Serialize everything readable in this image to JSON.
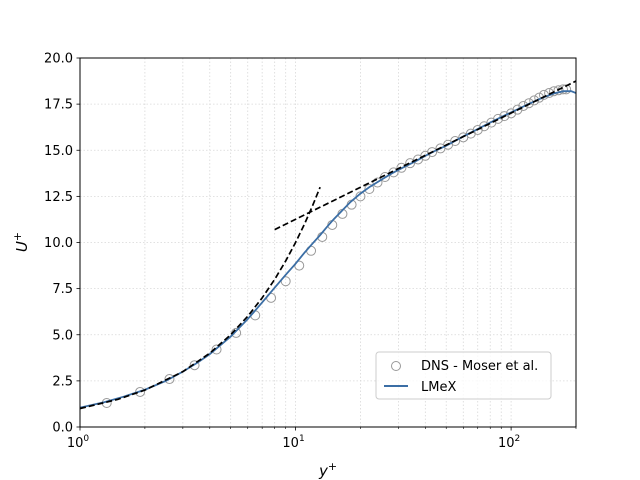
{
  "chart_data": {
    "type": "line",
    "title": "",
    "xlabel": "y",
    "xlabel_sup": "+",
    "ylabel": "U",
    "ylabel_sup": "+",
    "xscale": "log",
    "xlim": [
      1,
      200
    ],
    "ylim": [
      0,
      20
    ],
    "grid": true,
    "legend_position": "lower-right",
    "x_ticks": [
      {
        "value": 1,
        "base": "10",
        "exp": "0"
      },
      {
        "value": 10,
        "base": "10",
        "exp": "1"
      },
      {
        "value": 100,
        "base": "10",
        "exp": "2"
      }
    ],
    "y_ticks": [
      {
        "value": 0,
        "label": "0.0"
      },
      {
        "value": 2.5,
        "label": "2.5"
      },
      {
        "value": 5,
        "label": "5.0"
      },
      {
        "value": 7.5,
        "label": "7.5"
      },
      {
        "value": 10,
        "label": "10.0"
      },
      {
        "value": 12.5,
        "label": "12.5"
      },
      {
        "value": 15,
        "label": "15.0"
      },
      {
        "value": 17.5,
        "label": "17.5"
      },
      {
        "value": 20,
        "label": "20.0"
      }
    ],
    "series": [
      {
        "name": "DNS - Moser et al.",
        "style": "markers",
        "color": "#999999",
        "x": [
          1.33,
          1.9,
          2.6,
          3.4,
          4.3,
          5.3,
          6.5,
          7.7,
          9.0,
          10.4,
          11.8,
          13.3,
          14.8,
          16.5,
          18.2,
          20.0,
          22.0,
          24.0,
          26.0,
          28.5,
          31.0,
          34.0,
          37.0,
          40.0,
          43.0,
          47.0,
          51.0,
          55.0,
          60.0,
          65.0,
          70.0,
          75.0,
          81.0,
          87.0,
          93.0,
          100.0,
          107.0,
          114.0,
          121.0,
          128.0,
          135.0,
          142.0,
          150.0,
          158.0,
          166.0,
          174.0,
          180.0
        ],
        "y": [
          1.3,
          1.9,
          2.6,
          3.35,
          4.2,
          5.1,
          6.05,
          7.0,
          7.9,
          8.75,
          9.55,
          10.3,
          10.95,
          11.55,
          12.05,
          12.5,
          12.9,
          13.25,
          13.55,
          13.8,
          14.05,
          14.3,
          14.5,
          14.7,
          14.9,
          15.1,
          15.3,
          15.5,
          15.7,
          15.9,
          16.1,
          16.3,
          16.5,
          16.7,
          16.85,
          17.0,
          17.2,
          17.4,
          17.55,
          17.7,
          17.85,
          18.0,
          18.1,
          18.2,
          18.25,
          18.3,
          18.3
        ]
      },
      {
        "name": "LMeX",
        "style": "line",
        "color": "#3b6ea5",
        "x": [
          1.0,
          1.3,
          1.6,
          2.0,
          2.5,
          3.0,
          3.5,
          4.0,
          5.0,
          6.0,
          7.0,
          8.0,
          9.0,
          10.0,
          11.0,
          12.0,
          13.0,
          14.0,
          15.0,
          16.5,
          18.0,
          20.0,
          22.0,
          25.0,
          28.0,
          32.0,
          36.0,
          40.0,
          45.0,
          50.0,
          60.0,
          70.0,
          80.0,
          90.0,
          100.0,
          120.0,
          140.0,
          160.0,
          175.0,
          190.0,
          200.0
        ],
        "y": [
          1.05,
          1.35,
          1.65,
          2.02,
          2.5,
          3.0,
          3.48,
          3.95,
          4.9,
          5.85,
          6.75,
          7.55,
          8.25,
          8.85,
          9.45,
          9.95,
          10.4,
          10.85,
          11.25,
          11.75,
          12.2,
          12.65,
          13.0,
          13.4,
          13.75,
          14.1,
          14.4,
          14.7,
          15.0,
          15.25,
          15.75,
          16.15,
          16.5,
          16.8,
          17.05,
          17.5,
          17.85,
          18.1,
          18.2,
          18.2,
          18.1
        ]
      },
      {
        "name": "",
        "style": "dashed",
        "color": "#000000",
        "x": [
          1.0,
          1.5,
          2.0,
          3.0,
          4.0,
          5.0,
          6.0,
          7.0,
          8.0,
          9.0,
          10.0,
          11.0,
          12.0,
          13.0
        ],
        "y": [
          1.0,
          1.5,
          2.0,
          3.0,
          4.0,
          5.0,
          6.0,
          7.0,
          8.0,
          9.0,
          10.0,
          11.0,
          12.0,
          13.0
        ]
      },
      {
        "name": "",
        "style": "dashed",
        "color": "#000000",
        "x": [
          8.0,
          200.0
        ],
        "y": [
          10.7,
          18.75
        ]
      }
    ]
  }
}
